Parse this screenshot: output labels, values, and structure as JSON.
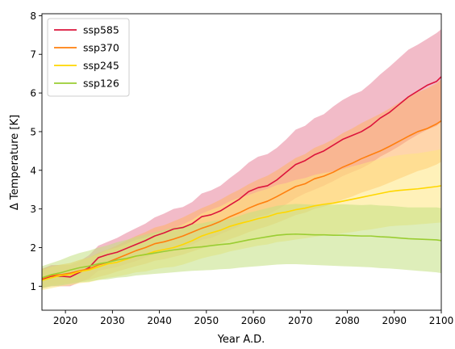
{
  "chart_data": {
    "type": "line",
    "title": "",
    "xlabel": "Year A.D.",
    "ylabel": "Δ Temperature [K]",
    "xlim": [
      2015,
      2100
    ],
    "ylim": [
      0.38,
      8.05
    ],
    "xticks": [
      2020,
      2030,
      2040,
      2050,
      2060,
      2070,
      2080,
      2090,
      2100
    ],
    "yticks": [
      1,
      2,
      3,
      4,
      5,
      6,
      7,
      8
    ],
    "grid": false,
    "legend_position": "top-left",
    "series": [
      {
        "name": "ssp585",
        "color": "#dc143c",
        "band_color": "#e8849b",
        "x": [
          2015,
          2017,
          2019,
          2021,
          2023,
          2025,
          2027,
          2029,
          2031,
          2033,
          2035,
          2037,
          2039,
          2041,
          2043,
          2045,
          2047,
          2049,
          2051,
          2053,
          2055,
          2057,
          2059,
          2061,
          2063,
          2065,
          2067,
          2069,
          2071,
          2073,
          2075,
          2077,
          2079,
          2081,
          2083,
          2085,
          2087,
          2089,
          2091,
          2093,
          2095,
          2097,
          2099,
          2100
        ],
        "mean": [
          1.18,
          1.26,
          1.26,
          1.24,
          1.36,
          1.48,
          1.74,
          1.82,
          1.88,
          1.98,
          2.08,
          2.18,
          2.3,
          2.38,
          2.48,
          2.52,
          2.62,
          2.8,
          2.85,
          2.95,
          3.1,
          3.25,
          3.45,
          3.55,
          3.6,
          3.75,
          3.95,
          4.15,
          4.25,
          4.4,
          4.5,
          4.65,
          4.8,
          4.9,
          5.0,
          5.15,
          5.35,
          5.5,
          5.7,
          5.9,
          6.05,
          6.2,
          6.3,
          6.42
        ],
        "lower": [
          0.95,
          1.0,
          1.0,
          1.0,
          1.1,
          1.2,
          1.4,
          1.45,
          1.5,
          1.58,
          1.65,
          1.75,
          1.83,
          1.9,
          1.97,
          2.0,
          2.08,
          2.2,
          2.25,
          2.35,
          2.45,
          2.55,
          2.72,
          2.8,
          2.85,
          2.98,
          3.12,
          3.28,
          3.4,
          3.5,
          3.6,
          3.72,
          3.85,
          3.95,
          4.05,
          4.18,
          4.35,
          4.48,
          4.62,
          4.78,
          4.92,
          5.05,
          5.15,
          5.25
        ],
        "upper": [
          1.45,
          1.55,
          1.55,
          1.55,
          1.65,
          1.8,
          2.05,
          2.15,
          2.25,
          2.38,
          2.5,
          2.62,
          2.78,
          2.88,
          3.0,
          3.05,
          3.18,
          3.4,
          3.48,
          3.6,
          3.8,
          3.98,
          4.2,
          4.35,
          4.42,
          4.58,
          4.8,
          5.05,
          5.15,
          5.35,
          5.45,
          5.65,
          5.82,
          5.95,
          6.05,
          6.25,
          6.48,
          6.68,
          6.9,
          7.12,
          7.25,
          7.4,
          7.55,
          7.65
        ]
      },
      {
        "name": "ssp370",
        "color": "#ff7f0e",
        "band_color": "#ffb366",
        "x": [
          2015,
          2017,
          2019,
          2021,
          2023,
          2025,
          2027,
          2029,
          2031,
          2033,
          2035,
          2037,
          2039,
          2041,
          2043,
          2045,
          2047,
          2049,
          2051,
          2053,
          2055,
          2057,
          2059,
          2061,
          2063,
          2065,
          2067,
          2069,
          2071,
          2073,
          2075,
          2077,
          2079,
          2081,
          2083,
          2085,
          2087,
          2089,
          2091,
          2093,
          2095,
          2097,
          2099,
          2100
        ],
        "mean": [
          1.2,
          1.28,
          1.3,
          1.34,
          1.4,
          1.45,
          1.55,
          1.62,
          1.72,
          1.82,
          1.92,
          2.0,
          2.1,
          2.15,
          2.22,
          2.3,
          2.4,
          2.5,
          2.58,
          2.68,
          2.8,
          2.9,
          3.02,
          3.12,
          3.2,
          3.32,
          3.45,
          3.58,
          3.65,
          3.78,
          3.85,
          3.95,
          4.08,
          4.18,
          4.3,
          4.4,
          4.5,
          4.62,
          4.75,
          4.88,
          5.0,
          5.08,
          5.2,
          5.28
        ],
        "lower": [
          0.98,
          1.02,
          1.05,
          1.08,
          1.12,
          1.16,
          1.24,
          1.3,
          1.38,
          1.45,
          1.52,
          1.58,
          1.66,
          1.7,
          1.76,
          1.82,
          1.9,
          1.98,
          2.04,
          2.12,
          2.22,
          2.3,
          2.4,
          2.48,
          2.55,
          2.64,
          2.74,
          2.84,
          2.9,
          3.0,
          3.06,
          3.14,
          3.24,
          3.32,
          3.42,
          3.5,
          3.58,
          3.68,
          3.78,
          3.88,
          3.98,
          4.05,
          4.15,
          4.22
        ],
        "upper": [
          1.45,
          1.52,
          1.56,
          1.6,
          1.68,
          1.74,
          1.86,
          1.95,
          2.06,
          2.18,
          2.3,
          2.4,
          2.52,
          2.58,
          2.68,
          2.78,
          2.9,
          3.02,
          3.12,
          3.24,
          3.38,
          3.5,
          3.64,
          3.76,
          3.86,
          4.0,
          4.16,
          4.32,
          4.42,
          4.58,
          4.68,
          4.8,
          4.96,
          5.08,
          5.22,
          5.34,
          5.46,
          5.6,
          5.75,
          5.9,
          6.02,
          6.12,
          6.25,
          6.35
        ]
      },
      {
        "name": "ssp245",
        "color": "#ffd700",
        "band_color": "#ffe680",
        "x": [
          2015,
          2017,
          2019,
          2021,
          2023,
          2025,
          2027,
          2029,
          2031,
          2033,
          2035,
          2037,
          2039,
          2041,
          2043,
          2045,
          2047,
          2049,
          2051,
          2053,
          2055,
          2057,
          2059,
          2061,
          2063,
          2065,
          2067,
          2069,
          2071,
          2073,
          2075,
          2077,
          2079,
          2081,
          2083,
          2085,
          2087,
          2089,
          2091,
          2093,
          2095,
          2097,
          2099,
          2100
        ],
        "mean": [
          1.15,
          1.22,
          1.28,
          1.3,
          1.38,
          1.42,
          1.5,
          1.58,
          1.62,
          1.7,
          1.78,
          1.82,
          1.9,
          1.95,
          2.0,
          2.08,
          2.18,
          2.3,
          2.38,
          2.45,
          2.55,
          2.62,
          2.68,
          2.75,
          2.8,
          2.88,
          2.92,
          2.98,
          3.02,
          3.08,
          3.12,
          3.15,
          3.2,
          3.25,
          3.3,
          3.35,
          3.4,
          3.45,
          3.48,
          3.5,
          3.52,
          3.55,
          3.58,
          3.6
        ],
        "lower": [
          0.9,
          0.95,
          1.0,
          1.02,
          1.08,
          1.1,
          1.16,
          1.22,
          1.25,
          1.3,
          1.36,
          1.38,
          1.44,
          1.48,
          1.5,
          1.56,
          1.64,
          1.72,
          1.78,
          1.83,
          1.9,
          1.95,
          2.0,
          2.05,
          2.08,
          2.14,
          2.17,
          2.21,
          2.24,
          2.28,
          2.31,
          2.33,
          2.37,
          2.4,
          2.44,
          2.47,
          2.51,
          2.55,
          2.57,
          2.58,
          2.6,
          2.62,
          2.64,
          2.65
        ],
        "upper": [
          1.42,
          1.5,
          1.56,
          1.6,
          1.68,
          1.74,
          1.84,
          1.94,
          2.0,
          2.1,
          2.2,
          2.26,
          2.36,
          2.42,
          2.5,
          2.6,
          2.72,
          2.88,
          2.98,
          3.07,
          3.2,
          3.29,
          3.36,
          3.45,
          3.52,
          3.62,
          3.67,
          3.75,
          3.8,
          3.88,
          3.93,
          3.97,
          4.03,
          4.1,
          4.16,
          4.23,
          4.29,
          4.35,
          4.39,
          4.42,
          4.44,
          4.48,
          4.52,
          4.55
        ]
      },
      {
        "name": "ssp126",
        "color": "#9acd32",
        "band_color": "#c2e082",
        "x": [
          2015,
          2017,
          2019,
          2021,
          2023,
          2025,
          2027,
          2029,
          2031,
          2033,
          2035,
          2037,
          2039,
          2041,
          2043,
          2045,
          2047,
          2049,
          2051,
          2053,
          2055,
          2057,
          2059,
          2061,
          2063,
          2065,
          2067,
          2069,
          2071,
          2073,
          2075,
          2077,
          2079,
          2081,
          2083,
          2085,
          2087,
          2089,
          2091,
          2093,
          2095,
          2097,
          2099,
          2100
        ],
        "mean": [
          1.22,
          1.3,
          1.35,
          1.42,
          1.48,
          1.52,
          1.58,
          1.62,
          1.68,
          1.72,
          1.78,
          1.82,
          1.86,
          1.9,
          1.94,
          1.97,
          2.0,
          2.02,
          2.05,
          2.08,
          2.1,
          2.15,
          2.2,
          2.24,
          2.28,
          2.32,
          2.34,
          2.35,
          2.34,
          2.33,
          2.33,
          2.32,
          2.32,
          2.31,
          2.3,
          2.3,
          2.28,
          2.27,
          2.25,
          2.23,
          2.22,
          2.21,
          2.2,
          2.18
        ],
        "lower": [
          0.95,
          1.0,
          1.02,
          1.06,
          1.1,
          1.12,
          1.16,
          1.18,
          1.22,
          1.24,
          1.28,
          1.3,
          1.32,
          1.34,
          1.36,
          1.38,
          1.4,
          1.41,
          1.42,
          1.44,
          1.45,
          1.48,
          1.5,
          1.52,
          1.54,
          1.56,
          1.57,
          1.57,
          1.56,
          1.55,
          1.54,
          1.53,
          1.52,
          1.51,
          1.5,
          1.49,
          1.47,
          1.46,
          1.44,
          1.42,
          1.4,
          1.38,
          1.36,
          1.34
        ],
        "upper": [
          1.52,
          1.6,
          1.68,
          1.78,
          1.86,
          1.92,
          2.0,
          2.06,
          2.14,
          2.2,
          2.28,
          2.34,
          2.4,
          2.46,
          2.52,
          2.56,
          2.6,
          2.63,
          2.68,
          2.72,
          2.75,
          2.82,
          2.9,
          2.96,
          3.02,
          3.08,
          3.11,
          3.13,
          3.12,
          3.11,
          3.12,
          3.11,
          3.12,
          3.11,
          3.1,
          3.11,
          3.09,
          3.08,
          3.06,
          3.04,
          3.04,
          3.04,
          3.04,
          3.02
        ]
      }
    ]
  }
}
